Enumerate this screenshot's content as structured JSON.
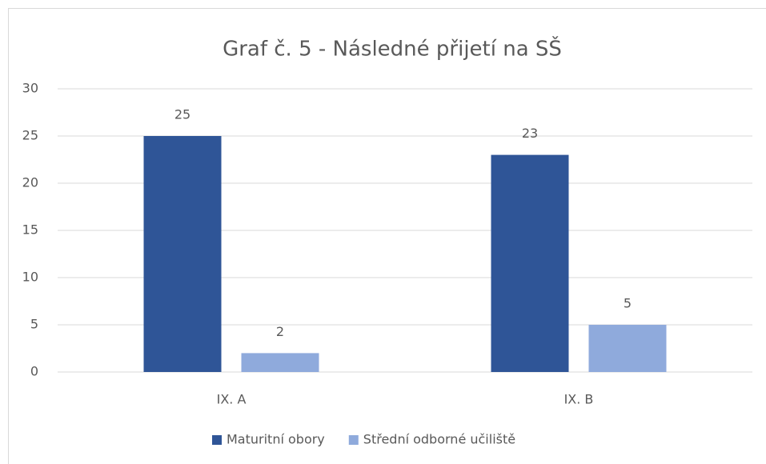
{
  "chart_data": {
    "type": "bar",
    "title": "Graf č. 5 - Následné přijetí na SŠ",
    "categories": [
      "IX. A",
      "IX. B"
    ],
    "series": [
      {
        "name": "Maturitní obory",
        "color": "#2f5597",
        "values": [
          25,
          23
        ]
      },
      {
        "name": "Střední odborné učiliště",
        "color": "#8faadc",
        "values": [
          2,
          5
        ]
      }
    ],
    "ylim": [
      0,
      30
    ],
    "yticks": [
      0,
      5,
      10,
      15,
      20,
      25,
      30
    ],
    "grid": true,
    "legend": "bottom"
  }
}
